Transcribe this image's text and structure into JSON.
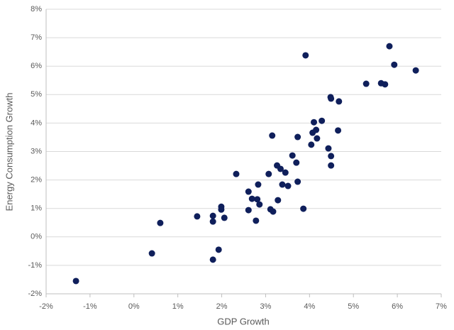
{
  "chart_data": {
    "type": "scatter",
    "x_label": "GDP Growth",
    "y_label": "Energy Consumption Growth",
    "color": "#0f1f5b",
    "grid": true,
    "xlim": [
      -2,
      7
    ],
    "xticks": [
      {
        "value": -2,
        "label": "-2%"
      },
      {
        "value": -1,
        "label": "-1%"
      },
      {
        "value": 0,
        "label": "0%"
      },
      {
        "value": 1,
        "label": "1%"
      },
      {
        "value": 2,
        "label": "2%"
      },
      {
        "value": 3,
        "label": "3%"
      },
      {
        "value": 4,
        "label": "4%"
      },
      {
        "value": 5,
        "label": "5%"
      },
      {
        "value": 6,
        "label": "6%"
      },
      {
        "value": 7,
        "label": "7%"
      }
    ],
    "ylim": [
      -2,
      8
    ],
    "yticks": [
      {
        "value": -2,
        "label": "-2%"
      },
      {
        "value": -1,
        "label": "-1%"
      },
      {
        "value": 0,
        "label": "0%"
      },
      {
        "value": 1,
        "label": "1%"
      },
      {
        "value": 2,
        "label": "2%"
      },
      {
        "value": 3,
        "label": "3%"
      },
      {
        "value": 4,
        "label": "4%"
      },
      {
        "value": 5,
        "label": "5%"
      },
      {
        "value": 6,
        "label": "6%"
      },
      {
        "value": 7,
        "label": "7%"
      },
      {
        "value": 8,
        "label": "8%"
      }
    ],
    "x": [
      -1.32,
      0.41,
      0.6,
      1.44,
      1.8,
      1.8,
      1.8,
      1.93,
      1.99,
      1.99,
      2.06,
      2.33,
      2.61,
      2.61,
      2.69,
      2.78,
      2.81,
      2.83,
      2.86,
      3.07,
      3.11,
      3.15,
      3.17,
      3.26,
      3.28,
      3.34,
      3.38,
      3.45,
      3.51,
      3.61,
      3.7,
      3.73,
      3.73,
      3.86,
      3.91,
      4.04,
      4.07,
      4.1,
      4.15,
      4.17,
      4.28,
      4.43,
      4.48,
      4.49,
      4.49,
      4.49,
      4.65,
      4.67,
      5.29,
      5.63,
      5.72,
      5.82,
      5.93,
      6.42
    ],
    "y": [
      -1.55,
      -0.58,
      0.49,
      0.72,
      0.74,
      0.54,
      -0.8,
      -0.45,
      1.06,
      0.96,
      0.67,
      2.21,
      1.59,
      0.94,
      1.34,
      0.57,
      1.32,
      1.84,
      1.14,
      2.21,
      0.97,
      3.56,
      0.89,
      2.51,
      1.29,
      2.39,
      1.84,
      2.26,
      1.79,
      2.86,
      2.61,
      3.51,
      1.94,
      0.99,
      6.38,
      3.24,
      3.66,
      4.03,
      3.76,
      3.46,
      4.08,
      3.11,
      4.91,
      4.86,
      2.84,
      2.51,
      3.74,
      4.76,
      5.38,
      5.4,
      5.36,
      6.7,
      6.05,
      5.85
    ]
  }
}
